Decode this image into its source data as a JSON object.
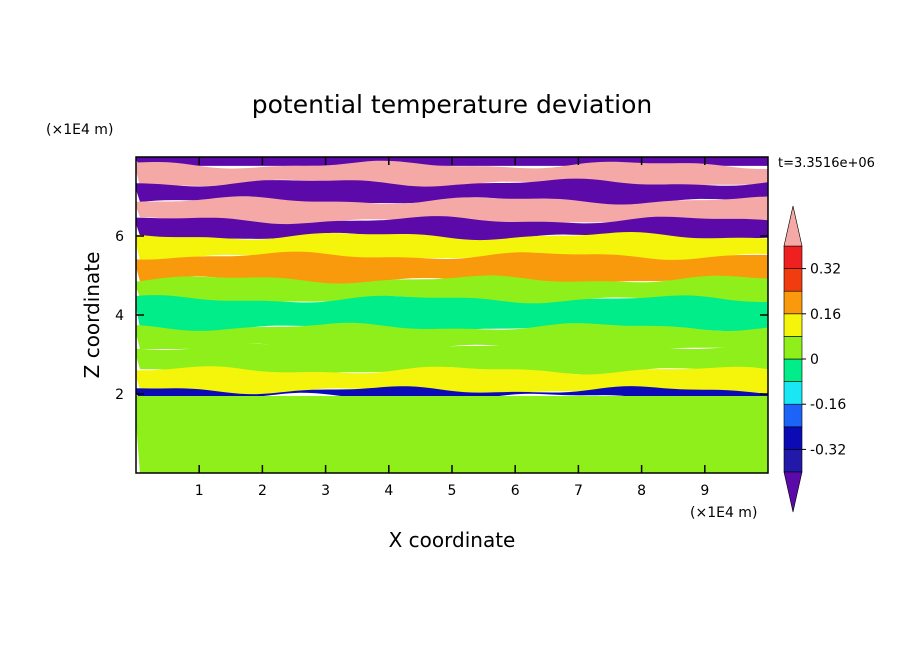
{
  "chart_data": {
    "type": "heatmap",
    "title": "potential temperature deviation",
    "xlabel": "X coordinate",
    "ylabel": "Z coordinate",
    "x_unit": "(×1E4 m)",
    "y_unit": "(×1E4 m)",
    "time_label": "t=3.3516e+06",
    "xlim": [
      0,
      10
    ],
    "ylim": [
      0,
      8
    ],
    "x_ticks": [
      "1",
      "2",
      "3",
      "4",
      "5",
      "6",
      "7",
      "8",
      "9"
    ],
    "y_ticks": [
      "2",
      "4",
      "6"
    ],
    "colorbar": {
      "labels": [
        "0.32",
        "0.16",
        "0",
        "-0.16",
        "-0.32"
      ],
      "levels": [
        -0.4,
        -0.32,
        -0.24,
        -0.16,
        -0.08,
        0,
        0.08,
        0.16,
        0.24,
        0.32,
        0.4
      ],
      "colors": [
        "#5b09a9",
        "#2219a9",
        "#0b0bb5",
        "#1c64f8",
        "#19e7f4",
        "#00ed8a",
        "#8fef1b",
        "#f5f50c",
        "#f99a0c",
        "#f03c0f",
        "#ef2020",
        "#f4a9a6"
      ],
      "extend": "both"
    },
    "layers": [
      {
        "z_range": [
          7.8,
          8.0
        ],
        "value": -0.45
      },
      {
        "z_range": [
          7.35,
          7.8
        ],
        "value": 0.45
      },
      {
        "z_range": [
          6.9,
          7.35
        ],
        "value": -0.45
      },
      {
        "z_range": [
          6.4,
          6.9
        ],
        "value": 0.45
      },
      {
        "z_range": [
          6.0,
          6.4
        ],
        "value": -0.45
      },
      {
        "z_range": [
          5.5,
          6.0
        ],
        "value": 0.1
      },
      {
        "z_range": [
          4.9,
          5.5
        ],
        "value": 0.2
      },
      {
        "z_range": [
          4.4,
          4.9
        ],
        "value": 0.05
      },
      {
        "z_range": [
          3.7,
          4.4
        ],
        "value": -0.05
      },
      {
        "z_range": [
          3.2,
          3.7
        ],
        "value": 0.0
      },
      {
        "z_range": [
          2.6,
          3.2
        ],
        "value": 0.05
      },
      {
        "z_range": [
          2.1,
          2.6
        ],
        "value": 0.12
      },
      {
        "z_range": [
          1.95,
          2.1
        ],
        "value": -0.3
      },
      {
        "z_range": [
          0.0,
          1.95
        ],
        "value": 0.04
      }
    ]
  }
}
